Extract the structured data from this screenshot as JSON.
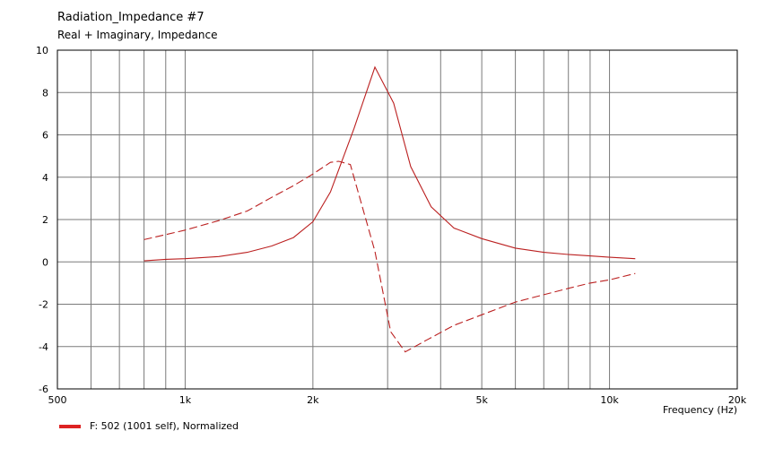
{
  "chart_data": {
    "type": "line",
    "title": "Radiation_Impedance #7",
    "subtitle": "Real + Imaginary, Impedance",
    "xlabel": "Frequency  (Hz)",
    "ylabel": "",
    "xscale": "log",
    "xlim": [
      500,
      20000
    ],
    "ylim": [
      -6,
      10
    ],
    "grid": true,
    "x_ticks": [
      {
        "value": 500,
        "label": "500"
      },
      {
        "value": 1000,
        "label": "1k"
      },
      {
        "value": 2000,
        "label": "2k"
      },
      {
        "value": 5000,
        "label": "5k"
      },
      {
        "value": 10000,
        "label": "10k"
      },
      {
        "value": 20000,
        "label": "20k"
      }
    ],
    "y_ticks": [
      {
        "value": 10,
        "label": "10"
      },
      {
        "value": 8,
        "label": "8"
      },
      {
        "value": 6,
        "label": "6"
      },
      {
        "value": 4,
        "label": "4"
      },
      {
        "value": 2,
        "label": "2"
      },
      {
        "value": 0,
        "label": "0"
      },
      {
        "value": -2,
        "label": "-2"
      },
      {
        "value": -4,
        "label": "-4"
      },
      {
        "value": -6,
        "label": "-6"
      }
    ],
    "legend": {
      "position": "bottom-left",
      "label": "F: 502 (1001 self), Normalized",
      "color": "#dd2222"
    },
    "series": [
      {
        "part": "real",
        "style": "solid",
        "color": "#bb2020",
        "points": [
          [
            800,
            0.05
          ],
          [
            900,
            0.12
          ],
          [
            1000,
            0.15
          ],
          [
            1200,
            0.25
          ],
          [
            1400,
            0.45
          ],
          [
            1600,
            0.75
          ],
          [
            1800,
            1.15
          ],
          [
            2000,
            1.9
          ],
          [
            2200,
            3.3
          ],
          [
            2500,
            6.3
          ],
          [
            2800,
            9.2
          ],
          [
            3100,
            7.5
          ],
          [
            3400,
            4.5
          ],
          [
            3800,
            2.6
          ],
          [
            4300,
            1.6
          ],
          [
            5000,
            1.1
          ],
          [
            6000,
            0.65
          ],
          [
            7000,
            0.45
          ],
          [
            8000,
            0.35
          ],
          [
            9000,
            0.28
          ],
          [
            10000,
            0.22
          ],
          [
            11500,
            0.15
          ]
        ]
      },
      {
        "part": "imaginary",
        "style": "dashed",
        "color": "#bb2020",
        "points": [
          [
            800,
            1.05
          ],
          [
            1000,
            1.5
          ],
          [
            1200,
            1.95
          ],
          [
            1400,
            2.4
          ],
          [
            1600,
            3.05
          ],
          [
            1800,
            3.6
          ],
          [
            2000,
            4.15
          ],
          [
            2200,
            4.7
          ],
          [
            2300,
            4.75
          ],
          [
            2450,
            4.6
          ],
          [
            2800,
            0.5
          ],
          [
            3050,
            -3.3
          ],
          [
            3300,
            -4.25
          ],
          [
            3700,
            -3.7
          ],
          [
            4300,
            -3.0
          ],
          [
            5000,
            -2.5
          ],
          [
            6000,
            -1.9
          ],
          [
            7000,
            -1.55
          ],
          [
            8000,
            -1.25
          ],
          [
            9000,
            -1.0
          ],
          [
            10000,
            -0.85
          ],
          [
            11500,
            -0.55
          ]
        ]
      }
    ]
  }
}
